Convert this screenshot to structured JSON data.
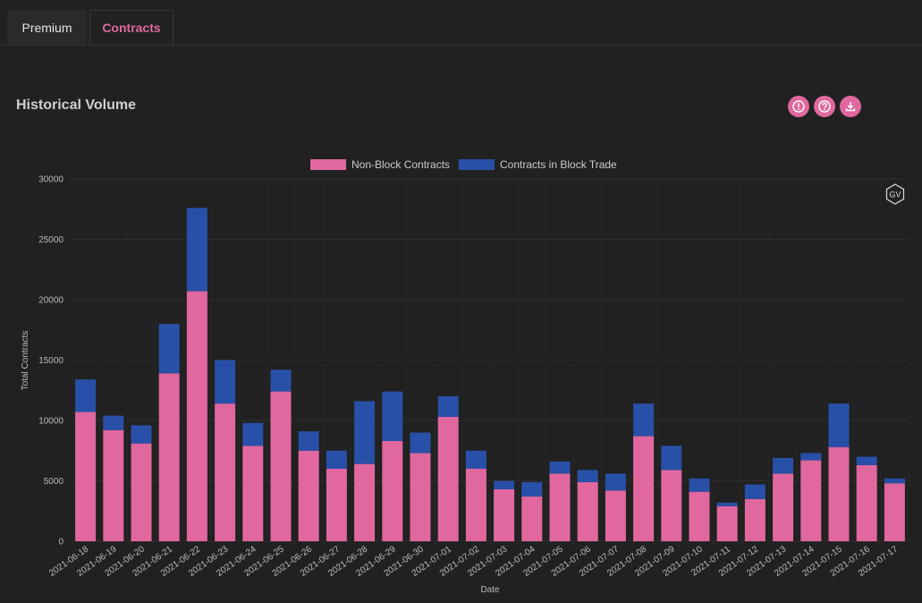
{
  "tabs": [
    {
      "label": "Premium",
      "active": false
    },
    {
      "label": "Contracts",
      "active": true
    }
  ],
  "section": {
    "title": "Historical Volume",
    "icons": [
      "info-icon",
      "help-icon",
      "download-icon"
    ]
  },
  "colors": {
    "accent": "#e0689e",
    "non_block": "#e0689e",
    "block": "#2950a8",
    "background": "#212121"
  },
  "watermark": "GV",
  "chart_data": {
    "type": "bar",
    "stacked": true,
    "xlabel": "Date",
    "ylabel": "Total Contracts",
    "ylim": [
      0,
      30000
    ],
    "yticks": [
      0,
      5000,
      10000,
      15000,
      20000,
      25000,
      30000
    ],
    "legend_position": "top-center",
    "grid": true,
    "categories": [
      "2021-06-18",
      "2021-06-19",
      "2021-06-20",
      "2021-06-21",
      "2021-06-22",
      "2021-06-23",
      "2021-06-24",
      "2021-06-25",
      "2021-06-26",
      "2021-06-27",
      "2021-06-28",
      "2021-06-29",
      "2021-06-30",
      "2021-07-01",
      "2021-07-02",
      "2021-07-03",
      "2021-07-04",
      "2021-07-05",
      "2021-07-06",
      "2021-07-07",
      "2021-07-08",
      "2021-07-09",
      "2021-07-10",
      "2021-07-11",
      "2021-07-12",
      "2021-07-13",
      "2021-07-14",
      "2021-07-15",
      "2021-07-16",
      "2021-07-17"
    ],
    "series": [
      {
        "name": "Non-Block Contracts",
        "values": [
          10700,
          9200,
          8100,
          13900,
          20700,
          11400,
          7900,
          12400,
          7500,
          6000,
          6400,
          8300,
          7300,
          10300,
          6000,
          4300,
          3700,
          5600,
          4900,
          4200,
          8700,
          5900,
          4100,
          2900,
          3500,
          5600,
          6700,
          7800,
          6300,
          4800
        ]
      },
      {
        "name": "Contracts in Block Trade",
        "values": [
          2700,
          1200,
          1500,
          4100,
          6900,
          3600,
          1900,
          1800,
          1600,
          1500,
          5200,
          4100,
          1700,
          1700,
          1500,
          700,
          1200,
          1000,
          1000,
          1400,
          2700,
          2000,
          1100,
          300,
          1200,
          1300,
          600,
          3600,
          700,
          400
        ]
      }
    ]
  }
}
